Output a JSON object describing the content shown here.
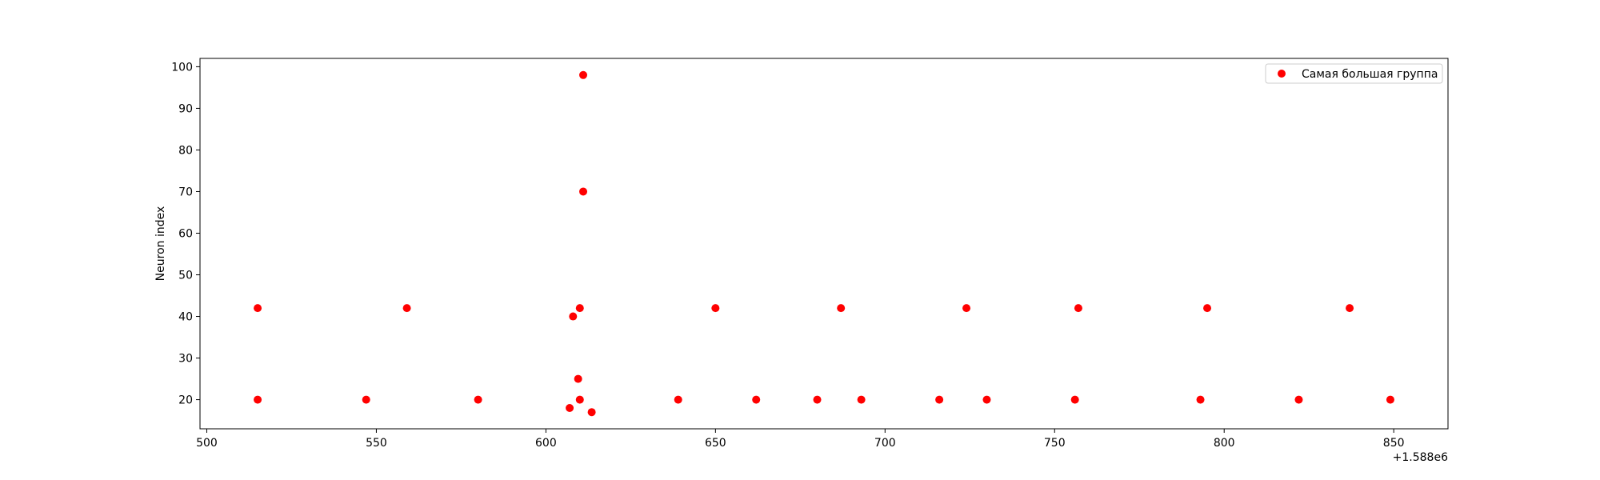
{
  "chart_data": {
    "type": "scatter",
    "title": "",
    "xlabel": "",
    "ylabel": "Neuron index",
    "x_offset_label": "+1.588e6",
    "xlim": [
      498,
      866
    ],
    "ylim": [
      13,
      102
    ],
    "xticks": [
      500,
      550,
      600,
      650,
      700,
      750,
      800,
      850
    ],
    "yticks": [
      20,
      30,
      40,
      50,
      60,
      70,
      80,
      90,
      100
    ],
    "grid": false,
    "legend_position": "top-right",
    "series": [
      {
        "name": "Самая большая группа",
        "color": "#ff0000",
        "marker": "circle",
        "points": [
          {
            "x": 515,
            "y": 42
          },
          {
            "x": 515,
            "y": 20
          },
          {
            "x": 547,
            "y": 20
          },
          {
            "x": 559,
            "y": 42
          },
          {
            "x": 580,
            "y": 20
          },
          {
            "x": 607,
            "y": 18
          },
          {
            "x": 608,
            "y": 40
          },
          {
            "x": 609.5,
            "y": 25
          },
          {
            "x": 610,
            "y": 42
          },
          {
            "x": 610,
            "y": 20
          },
          {
            "x": 611,
            "y": 98
          },
          {
            "x": 611,
            "y": 70
          },
          {
            "x": 613.5,
            "y": 17
          },
          {
            "x": 639,
            "y": 20
          },
          {
            "x": 650,
            "y": 42
          },
          {
            "x": 662,
            "y": 20
          },
          {
            "x": 680,
            "y": 20
          },
          {
            "x": 687,
            "y": 42
          },
          {
            "x": 693,
            "y": 20
          },
          {
            "x": 716,
            "y": 20
          },
          {
            "x": 724,
            "y": 42
          },
          {
            "x": 730,
            "y": 20
          },
          {
            "x": 756,
            "y": 20
          },
          {
            "x": 757,
            "y": 42
          },
          {
            "x": 793,
            "y": 20
          },
          {
            "x": 795,
            "y": 42
          },
          {
            "x": 822,
            "y": 20
          },
          {
            "x": 837,
            "y": 42
          },
          {
            "x": 849,
            "y": 20
          }
        ]
      }
    ]
  }
}
